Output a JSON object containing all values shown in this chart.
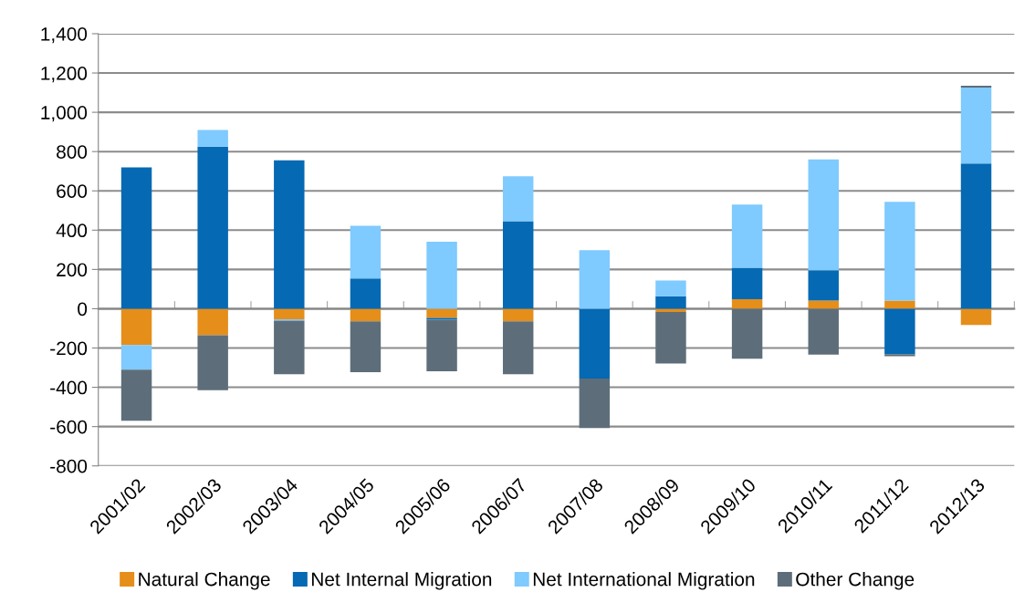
{
  "chart_data": {
    "type": "bar",
    "stacked": true,
    "categories": [
      "2001/02",
      "2002/03",
      "2003/04",
      "2004/05",
      "2005/06",
      "2006/07",
      "2007/08",
      "2008/09",
      "2009/10",
      "2010/11",
      "2011/12",
      "2012/13"
    ],
    "series": [
      {
        "name": "Natural Change",
        "color": "#e58e1a",
        "values": [
          -185,
          -135,
          -54,
          -64,
          -47,
          -64,
          0,
          -17,
          48,
          42,
          42,
          -83
        ]
      },
      {
        "name": "Net Internal Migration",
        "color": "#0569b3",
        "values": [
          720,
          825,
          755,
          154,
          -9,
          445,
          -356,
          64,
          161,
          154,
          -231,
          739
        ]
      },
      {
        "name": "Net International Migration",
        "color": "#7fcaff",
        "values": [
          -125,
          85,
          -7,
          268,
          341,
          229,
          298,
          80,
          321,
          564,
          502,
          387
        ]
      },
      {
        "name": "Other Change",
        "color": "#5d6e7a",
        "values": [
          -260,
          -280,
          -272,
          -259,
          -262,
          -270,
          -251,
          -262,
          -254,
          -234,
          -11,
          9
        ]
      }
    ],
    "ylim": [
      -800,
      1400
    ],
    "yticks": [
      {
        "value": -800,
        "label": "-800"
      },
      {
        "value": -600,
        "label": "-600"
      },
      {
        "value": -400,
        "label": "-400"
      },
      {
        "value": -200,
        "label": "-200"
      },
      0,
      200,
      400,
      600,
      800,
      {
        "value": 1000,
        "label": "1,000"
      },
      {
        "value": 1200,
        "label": "1,200"
      },
      {
        "value": 1400,
        "label": "1,400"
      }
    ],
    "grid": "y",
    "legend": "bottom"
  }
}
